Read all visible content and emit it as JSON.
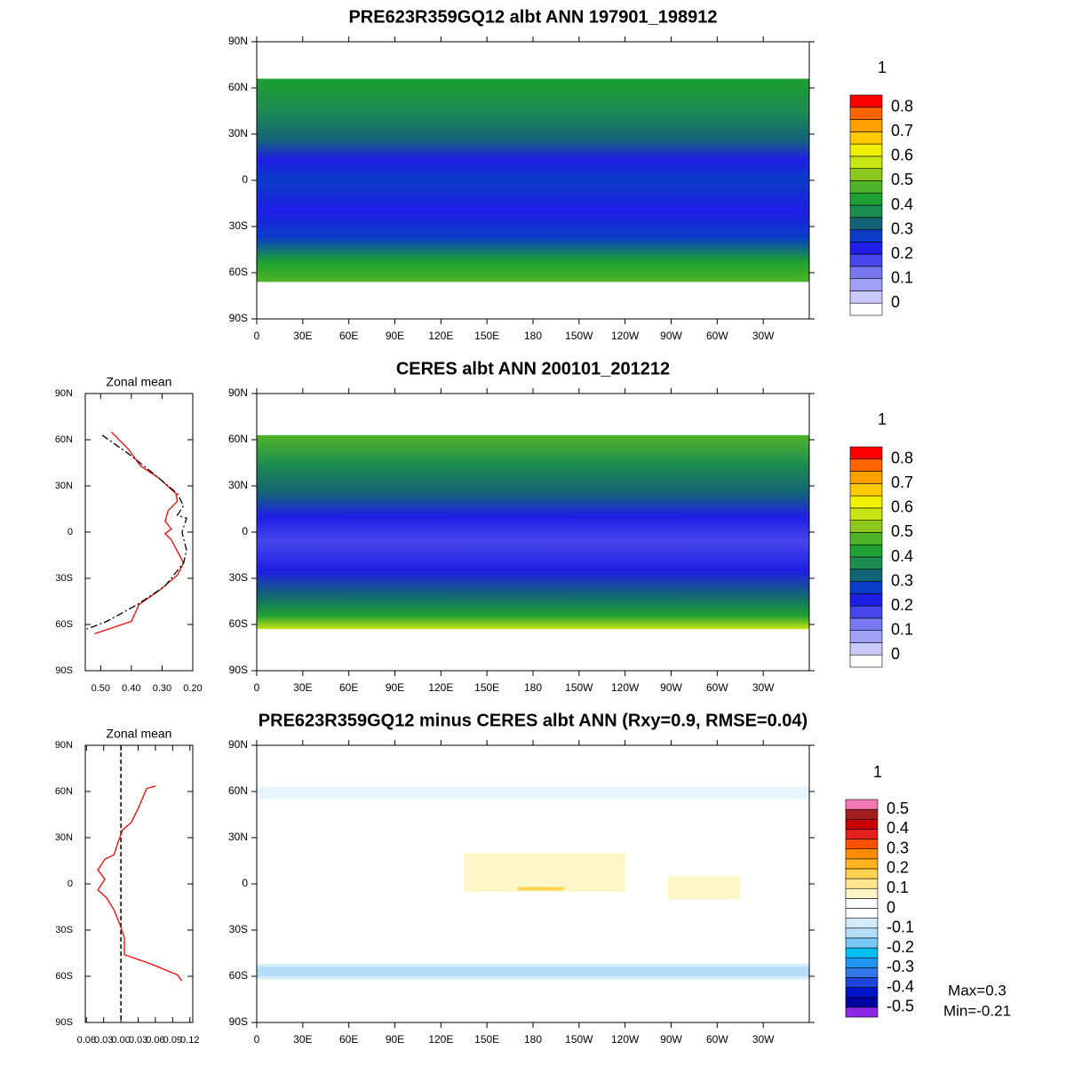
{
  "chart_data": [
    {
      "type": "map",
      "title": "PRE623R359GQ12 albt ANN 197901_198912",
      "xlim": [
        0,
        360
      ],
      "ylim": [
        -90,
        90
      ],
      "xticks": [
        0,
        {
          "value": 30,
          "label": "30E"
        },
        {
          "value": 60,
          "label": "60E"
        },
        {
          "value": 90,
          "label": "90E"
        },
        {
          "value": 120,
          "label": "120E"
        },
        {
          "value": 150,
          "label": "150E"
        },
        180,
        {
          "value": 210,
          "label": "150W"
        },
        {
          "value": 240,
          "label": "120W"
        },
        {
          "value": 270,
          "label": "90W"
        },
        {
          "value": 300,
          "label": "60W"
        },
        {
          "value": 330,
          "label": "30W"
        }
      ],
      "yticks": [
        {
          "value": 90,
          "label": "90N"
        },
        {
          "value": 60,
          "label": "60N"
        },
        {
          "value": 30,
          "label": "30N"
        },
        0,
        {
          "value": -30,
          "label": "30S"
        },
        {
          "value": -60,
          "label": "60S"
        },
        {
          "value": -90,
          "label": "90S"
        }
      ],
      "colorbar": {
        "title": "1",
        "lim": [
          -0.05,
          0.85
        ],
        "ticks": [
          0.8,
          0.7,
          0.6,
          0.5,
          0.4,
          0.3,
          0.2,
          0.1,
          0
        ],
        "colors": [
          "#ffffff",
          "#c8c8fa",
          "#a0a0f5",
          "#7878f0",
          "#4646eb",
          "#1e1ee6",
          "#0a3cc8",
          "#146478",
          "#1e8c50",
          "#1ea032",
          "#50b428",
          "#8cc81e",
          "#c8e614",
          "#f0f000",
          "#ffc800",
          "#ffa000",
          "#ff6400",
          "#ff0000"
        ]
      }
    },
    {
      "type": "line",
      "title": "Zonal mean",
      "xlim": [
        0.55,
        0.2
      ],
      "ylim": [
        -90,
        90
      ],
      "xticks": [
        {
          "value": 0.5,
          "label": "0.50"
        },
        {
          "value": 0.4,
          "label": "0.40"
        },
        {
          "value": 0.3,
          "label": "0.30"
        },
        {
          "value": 0.2,
          "label": "0.20"
        }
      ],
      "yticks": [
        {
          "value": 90,
          "label": "90N"
        },
        {
          "value": 60,
          "label": "60N"
        },
        {
          "value": 30,
          "label": "30N"
        },
        0,
        {
          "value": -30,
          "label": "30S"
        },
        {
          "value": -60,
          "label": "60S"
        },
        {
          "value": -90,
          "label": "90S"
        }
      ],
      "series": [
        {
          "color": "#ff0000",
          "dash": false,
          "y": [
            65,
            54,
            43,
            35,
            25,
            20,
            14,
            7,
            2,
            -1,
            -5,
            -20,
            -28,
            -38,
            -47,
            -58,
            -66
          ],
          "values": [
            0.465,
            0.41,
            0.37,
            0.31,
            0.255,
            0.25,
            0.28,
            0.29,
            0.27,
            0.29,
            0.27,
            0.23,
            0.25,
            0.31,
            0.375,
            0.4,
            0.52
          ]
        },
        {
          "color": "#000000",
          "dash": true,
          "y": [
            63,
            51,
            40,
            25,
            17,
            11,
            9,
            0,
            -12,
            -20,
            -35,
            -47,
            -58,
            -63
          ],
          "values": [
            0.495,
            0.41,
            0.34,
            0.25,
            0.23,
            0.25,
            0.22,
            0.235,
            0.22,
            0.23,
            0.29,
            0.38,
            0.48,
            0.545
          ]
        }
      ]
    },
    {
      "type": "map",
      "title": "CERES albt ANN 200101_201212",
      "xlim": [
        0,
        360
      ],
      "ylim": [
        -90,
        90
      ],
      "xticks": [
        0,
        {
          "value": 30,
          "label": "30E"
        },
        {
          "value": 60,
          "label": "60E"
        },
        {
          "value": 90,
          "label": "90E"
        },
        {
          "value": 120,
          "label": "120E"
        },
        {
          "value": 150,
          "label": "150E"
        },
        180,
        {
          "value": 210,
          "label": "150W"
        },
        {
          "value": 240,
          "label": "120W"
        },
        {
          "value": 270,
          "label": "90W"
        },
        {
          "value": 300,
          "label": "60W"
        },
        {
          "value": 330,
          "label": "30W"
        }
      ],
      "yticks": [
        {
          "value": 90,
          "label": "90N"
        },
        {
          "value": 60,
          "label": "60N"
        },
        {
          "value": 30,
          "label": "30N"
        },
        0,
        {
          "value": -30,
          "label": "30S"
        },
        {
          "value": -60,
          "label": "60S"
        },
        {
          "value": -90,
          "label": "90S"
        }
      ],
      "colorbar": {
        "title": "1",
        "lim": [
          -0.05,
          0.85
        ],
        "ticks": [
          0.8,
          0.7,
          0.6,
          0.5,
          0.4,
          0.3,
          0.2,
          0.1,
          0
        ],
        "colors": [
          "#ffffff",
          "#c8c8fa",
          "#a0a0f5",
          "#7878f0",
          "#4646eb",
          "#1e1ee6",
          "#0a3cc8",
          "#146478",
          "#1e8c50",
          "#1ea032",
          "#50b428",
          "#8cc81e",
          "#c8e614",
          "#f0f000",
          "#ffc800",
          "#ffa000",
          "#ff6400",
          "#ff0000"
        ]
      }
    },
    {
      "type": "line",
      "title": "Zonal mean",
      "zero_line": true,
      "xlim": [
        -0.062,
        0.125
      ],
      "ylim": [
        -90,
        90
      ],
      "xticks": [
        {
          "value": -0.06,
          "label": "0.06"
        },
        {
          "value": -0.03,
          "label": "0.03"
        },
        {
          "value": 0,
          "label": "0.00"
        },
        0.03,
        0.06,
        0.09,
        0.12
      ],
      "yticks": [
        {
          "value": 90,
          "label": "90N"
        },
        {
          "value": 60,
          "label": "60N"
        },
        {
          "value": 30,
          "label": "30N"
        },
        0,
        {
          "value": -30,
          "label": "30S"
        },
        {
          "value": -60,
          "label": "60S"
        },
        {
          "value": -90,
          "label": "90S"
        }
      ],
      "series": [
        {
          "color": "#ff0000",
          "dash": false,
          "y": [
            63.5,
            62,
            49,
            40,
            35,
            26,
            19,
            16,
            9,
            3,
            -4,
            -9,
            -17,
            -26,
            -35,
            -46,
            -52,
            -59,
            -63
          ],
          "values": [
            0.06,
            0.045,
            0.03,
            0.018,
            0.003,
            -0.006,
            -0.012,
            -0.028,
            -0.04,
            -0.028,
            -0.04,
            -0.025,
            -0.012,
            -0.002,
            0.006,
            0.006,
            0.052,
            0.098,
            0.106
          ]
        }
      ]
    },
    {
      "type": "map",
      "title": "PRE623R359GQ12 minus CERES albt ANN (Rxy=0.9, RMSE=0.04)",
      "xlim": [
        0,
        360
      ],
      "ylim": [
        -90,
        90
      ],
      "xticks": [
        0,
        {
          "value": 30,
          "label": "30E"
        },
        {
          "value": 60,
          "label": "60E"
        },
        {
          "value": 90,
          "label": "90E"
        },
        {
          "value": 120,
          "label": "120E"
        },
        {
          "value": 150,
          "label": "150E"
        },
        180,
        {
          "value": 210,
          "label": "150W"
        },
        {
          "value": 240,
          "label": "120W"
        },
        {
          "value": 270,
          "label": "90W"
        },
        {
          "value": 300,
          "label": "60W"
        },
        {
          "value": 330,
          "label": "30W"
        }
      ],
      "yticks": [
        {
          "value": 90,
          "label": "90N"
        },
        {
          "value": 60,
          "label": "60N"
        },
        {
          "value": 30,
          "label": "30N"
        },
        0,
        {
          "value": -30,
          "label": "30S"
        },
        {
          "value": -60,
          "label": "60S"
        },
        {
          "value": -90,
          "label": "90S"
        }
      ],
      "annotations": [
        "Max=0.3",
        "Min=-0.21"
      ],
      "colorbar": {
        "title": "1",
        "lim": [
          -0.55,
          0.55
        ],
        "ticks": [
          0.5,
          0.4,
          0.3,
          0.2,
          0.1,
          0,
          -0.1,
          -0.2,
          -0.3,
          -0.4,
          -0.5
        ],
        "colors": [
          "#8c28e6",
          "#0000a0",
          "#0014c8",
          "#1e46dc",
          "#3278e6",
          "#1e96f0",
          "#00bef0",
          "#78c8f5",
          "#b4def8",
          "#d2ecfa",
          "#ffffff",
          "#ffffff",
          "#fff6c8",
          "#ffe68c",
          "#ffd250",
          "#ffb41e",
          "#ff8c00",
          "#ff5000",
          "#e61e1e",
          "#c80000",
          "#a01e1e",
          "#f078b4"
        ]
      }
    }
  ]
}
